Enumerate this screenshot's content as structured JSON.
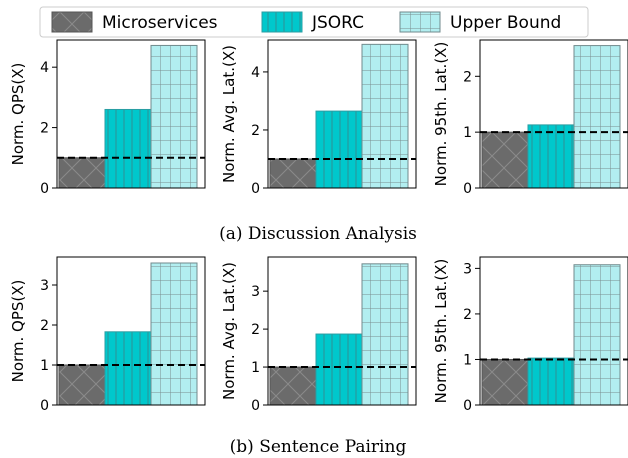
{
  "legend": {
    "placement": "top-center",
    "entries": [
      {
        "name": "Microservices",
        "color": "#6b6b6b",
        "hatch": "x"
      },
      {
        "name": "JSORC",
        "color": "#00c8cc",
        "hatch": "|"
      },
      {
        "name": "Upper Bound",
        "color": "#b2eef0",
        "hatch": "+"
      }
    ]
  },
  "captions": {
    "a": "(a) Discussion Analysis",
    "b": "(b) Sentence Pairing"
  },
  "chart_data": [
    {
      "type": "bar",
      "group": "a",
      "ylabel": "Norm. QPS(X)",
      "categories": [
        "Microservices",
        "JSORC",
        "Upper Bound"
      ],
      "values": [
        1.0,
        2.6,
        4.72
      ],
      "ylim": [
        0,
        4.9
      ],
      "yticks": [
        0,
        2,
        4
      ],
      "reference_line": 1.0
    },
    {
      "type": "bar",
      "group": "a",
      "ylabel": "Norm. Avg. Lat.(X)",
      "categories": [
        "Microservices",
        "JSORC",
        "Upper Bound"
      ],
      "values": [
        1.0,
        2.65,
        4.95
      ],
      "ylim": [
        0,
        5.1
      ],
      "yticks": [
        0,
        2,
        4
      ],
      "reference_line": 1.0
    },
    {
      "type": "bar",
      "group": "a",
      "ylabel": "Norm. 95th. Lat.(X)",
      "categories": [
        "Microservices",
        "JSORC",
        "Upper Bound"
      ],
      "values": [
        1.0,
        1.13,
        2.55
      ],
      "ylim": [
        0,
        2.65
      ],
      "yticks": [
        0,
        1,
        2
      ],
      "reference_line": 1.0
    },
    {
      "type": "bar",
      "group": "b",
      "ylabel": "Norm. QPS(X)",
      "categories": [
        "Microservices",
        "JSORC",
        "Upper Bound"
      ],
      "values": [
        1.0,
        1.83,
        3.55
      ],
      "ylim": [
        0,
        3.7
      ],
      "yticks": [
        0,
        1,
        2,
        3
      ],
      "reference_line": 1.0
    },
    {
      "type": "bar",
      "group": "b",
      "ylabel": "Norm. Avg. Lat.(X)",
      "categories": [
        "Microservices",
        "JSORC",
        "Upper Bound"
      ],
      "values": [
        1.0,
        1.87,
        3.72
      ],
      "ylim": [
        0,
        3.9
      ],
      "yticks": [
        0,
        1,
        2,
        3
      ],
      "reference_line": 1.0
    },
    {
      "type": "bar",
      "group": "b",
      "ylabel": "Norm. 95th. Lat.(X)",
      "categories": [
        "Microservices",
        "JSORC",
        "Upper Bound"
      ],
      "values": [
        1.0,
        1.03,
        3.08
      ],
      "ylim": [
        0,
        3.25
      ],
      "yticks": [
        0,
        1,
        2,
        3
      ],
      "reference_line": 1.0
    }
  ]
}
